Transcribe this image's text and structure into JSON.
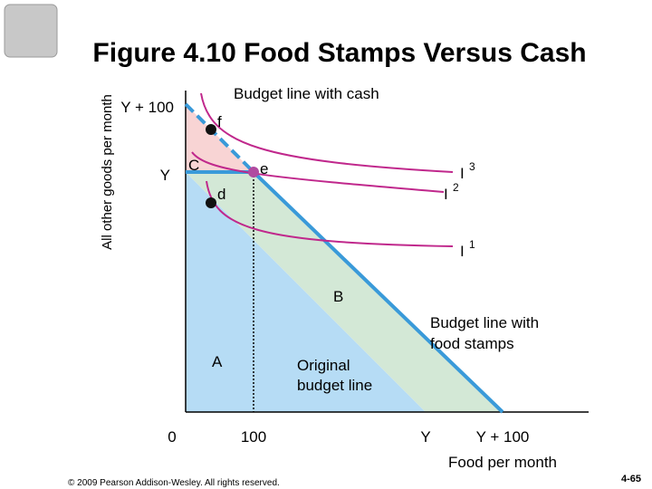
{
  "title": "Figure 4.10 Food Stamps Versus Cash",
  "y_axis_label": "All other goods per month",
  "x_axis_label": "Food per month",
  "y_ticks": [
    "Y + 100",
    "Y"
  ],
  "x_ticks": [
    "0",
    "100",
    "Y",
    "Y + 100"
  ],
  "points": {
    "f": "f",
    "e": "e",
    "d": "d"
  },
  "regions": {
    "C": "C",
    "B": "B",
    "A": "A"
  },
  "curves": [
    {
      "label": "I",
      "sup": "3"
    },
    {
      "label": "I",
      "sup": "2"
    },
    {
      "label": "I",
      "sup": "1"
    }
  ],
  "annotations": {
    "cash_line": "Budget line with cash",
    "food_stamp_line": [
      "Budget line with",
      "food stamps"
    ],
    "original_line": [
      "Original",
      "budget line"
    ]
  },
  "footer": {
    "copyright": "© 2009 Pearson Addison-Wesley. All rights reserved.",
    "page": "4-65"
  }
}
